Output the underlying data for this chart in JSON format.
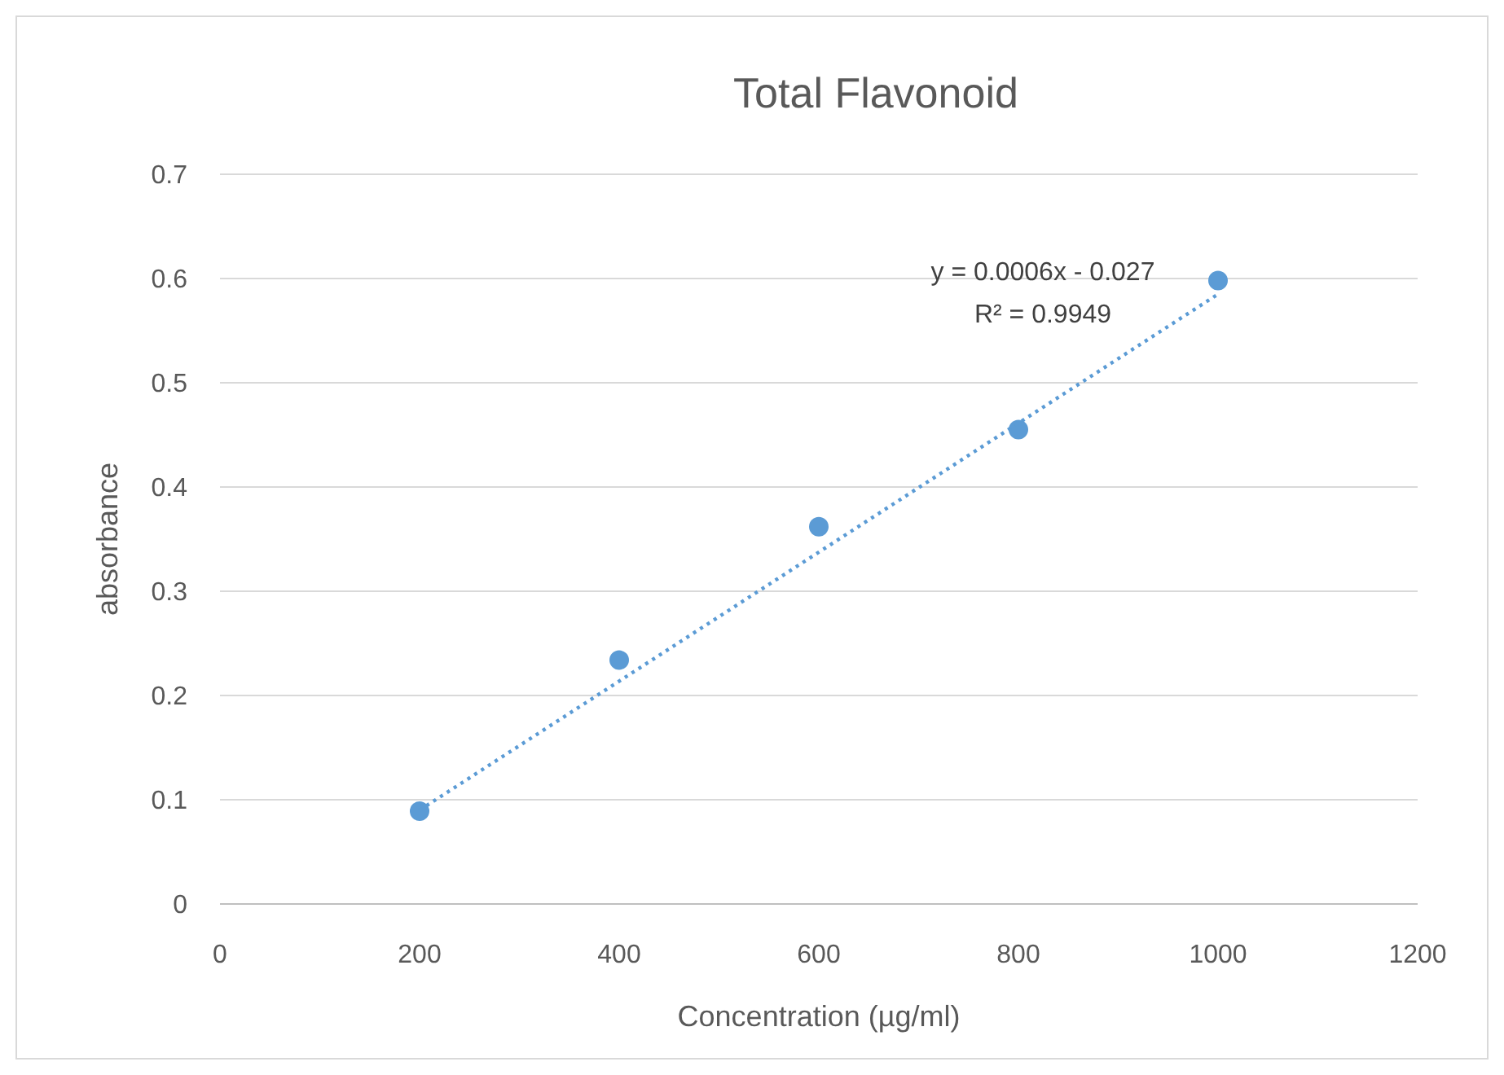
{
  "chart_data": {
    "type": "scatter",
    "title": "Total Flavonoid",
    "xlabel": "Concentration (µg/ml)",
    "ylabel": "absorbance",
    "x": [
      200,
      400,
      600,
      800,
      1000
    ],
    "series": [
      {
        "color": "#5b9bd5",
        "values": [
          0.089,
          0.234,
          0.362,
          0.455,
          0.598
        ]
      },
      {
        "type": "line",
        "x": [
          200,
          1000
        ],
        "values": [
          0.09,
          0.585
        ],
        "color": "#5b9bd5",
        "line_style": "dotted",
        "marker": "none"
      }
    ],
    "annotations": [
      "y = 0.0006x - 0.027",
      "R² = 0.9949"
    ],
    "xlim": [
      0,
      1200
    ],
    "xticks": [
      0,
      200,
      400,
      600,
      800,
      1000,
      1200
    ],
    "ylim": [
      0,
      0.7
    ],
    "yticks": [
      0,
      0.1,
      0.2,
      0.3,
      0.4,
      0.5,
      0.6,
      0.7
    ],
    "grid": "y",
    "marker": "circle"
  }
}
